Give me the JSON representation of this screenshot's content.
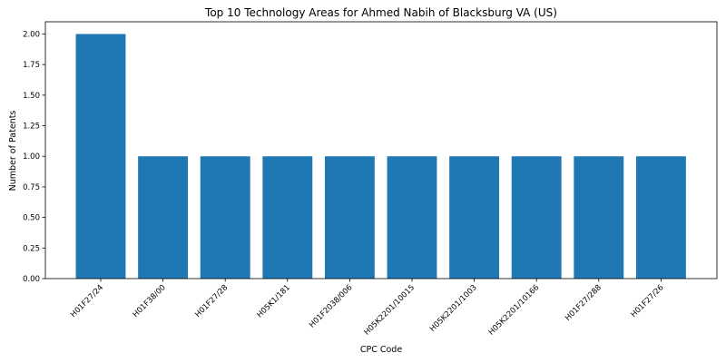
{
  "chart_data": {
    "type": "bar",
    "title": "Top 10 Technology Areas for Ahmed Nabih of Blacksburg VA (US)",
    "xlabel": "CPC Code",
    "ylabel": "Number of Patents",
    "categories": [
      "H01F27/24",
      "H01F38/00",
      "H01F27/28",
      "H05K1/181",
      "H01F2038/006",
      "H05K2201/10015",
      "H05K2201/1003",
      "H05K2201/10166",
      "H01F27/288",
      "H01F27/26"
    ],
    "values": [
      2,
      1,
      1,
      1,
      1,
      1,
      1,
      1,
      1,
      1
    ],
    "ylim": [
      0,
      2.1
    ],
    "yticks": [
      "0.00",
      "0.25",
      "0.50",
      "0.75",
      "1.00",
      "1.25",
      "1.50",
      "1.75",
      "2.00"
    ],
    "bar_color": "#1f77b4",
    "grid": false,
    "legend": "none"
  }
}
